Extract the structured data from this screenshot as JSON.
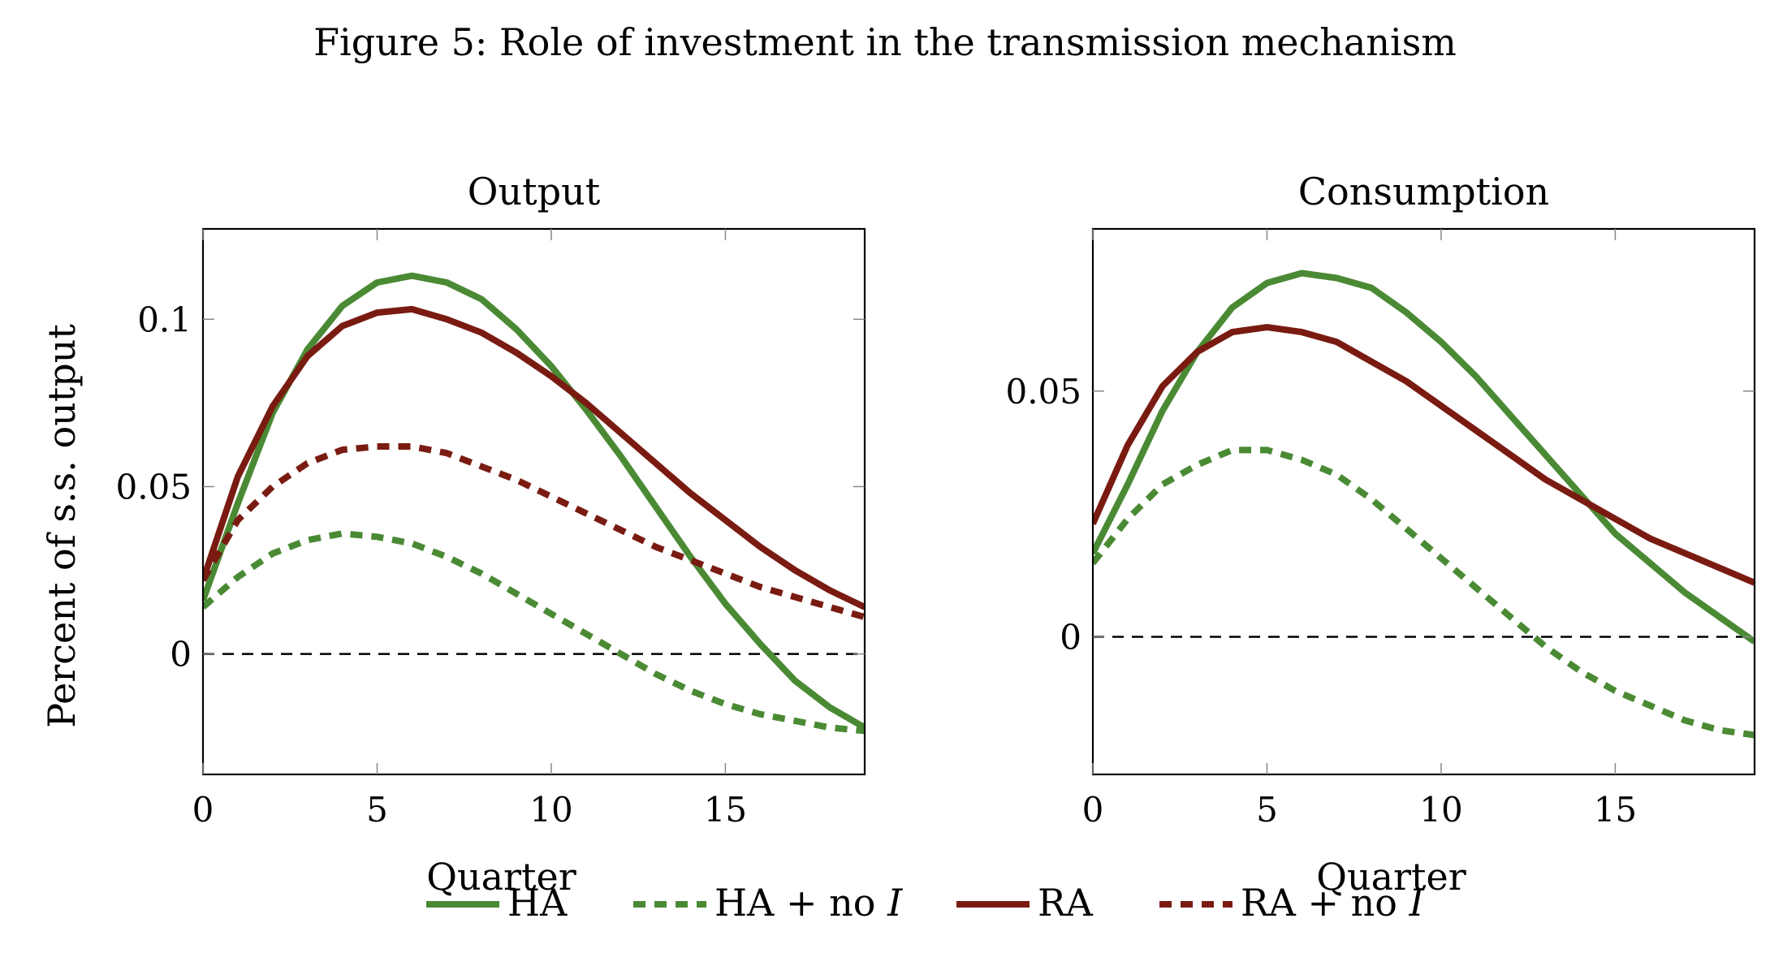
{
  "figure": {
    "title": "Figure 5: Role of investment in the transmission mechanism",
    "ylabel": "Percent of s.s. output"
  },
  "colors": {
    "ha": "#4a8a34",
    "ra": "#7a1b12",
    "zero_line": "#000000"
  },
  "legend": {
    "placement": "bottom-center",
    "items": [
      {
        "key": "ha",
        "label_main": "HA",
        "label_italic": "",
        "style": "solid",
        "color": "#4a8a34"
      },
      {
        "key": "ha_noi",
        "label_main": "HA + no ",
        "label_italic": "I",
        "style": "dashed",
        "color": "#4a8a34"
      },
      {
        "key": "ra",
        "label_main": "RA",
        "label_italic": "",
        "style": "solid",
        "color": "#7a1b12"
      },
      {
        "key": "ra_noi",
        "label_main": "RA + no ",
        "label_italic": "I",
        "style": "dashed",
        "color": "#7a1b12"
      }
    ]
  },
  "chart_data": [
    {
      "type": "line",
      "title": "Output",
      "xlabel": "Quarter",
      "xlim": [
        0,
        19
      ],
      "ylim": [
        -0.036,
        0.127
      ],
      "xticks": [
        0,
        5,
        10,
        15
      ],
      "xtick_labels": [
        "0",
        "5",
        "10",
        "15"
      ],
      "yticks": [
        0,
        0.05,
        0.1
      ],
      "ytick_labels": [
        "0",
        "0.05",
        "0.1"
      ],
      "zero_line": true,
      "x": [
        0,
        1,
        2,
        3,
        4,
        5,
        6,
        7,
        8,
        9,
        10,
        11,
        12,
        13,
        14,
        15,
        16,
        17,
        18,
        19
      ],
      "series": [
        {
          "key": "ha",
          "name": "HA",
          "style": "solid",
          "values": [
            0.016,
            0.045,
            0.072,
            0.091,
            0.104,
            0.111,
            0.113,
            0.111,
            0.106,
            0.097,
            0.086,
            0.073,
            0.059,
            0.044,
            0.029,
            0.015,
            0.003,
            -0.008,
            -0.016,
            -0.022
          ]
        },
        {
          "key": "ha_noi",
          "name": "HA + no I",
          "style": "dashed",
          "values": [
            0.014,
            0.023,
            0.03,
            0.034,
            0.036,
            0.035,
            0.033,
            0.029,
            0.024,
            0.018,
            0.012,
            0.006,
            0.0,
            -0.006,
            -0.011,
            -0.015,
            -0.018,
            -0.02,
            -0.022,
            -0.023
          ]
        },
        {
          "key": "ra",
          "name": "RA",
          "style": "solid",
          "values": [
            0.022,
            0.053,
            0.074,
            0.089,
            0.098,
            0.102,
            0.103,
            0.1,
            0.096,
            0.09,
            0.083,
            0.075,
            0.066,
            0.057,
            0.048,
            0.04,
            0.032,
            0.025,
            0.019,
            0.014
          ]
        },
        {
          "key": "ra_noi",
          "name": "RA + no I",
          "style": "dashed",
          "values": [
            0.022,
            0.04,
            0.05,
            0.057,
            0.061,
            0.062,
            0.062,
            0.06,
            0.056,
            0.052,
            0.047,
            0.042,
            0.037,
            0.032,
            0.028,
            0.024,
            0.02,
            0.017,
            0.014,
            0.011
          ]
        }
      ]
    },
    {
      "type": "line",
      "title": "Consumption",
      "xlabel": "Quarter",
      "xlim": [
        0,
        19
      ],
      "ylim": [
        -0.028,
        0.083
      ],
      "xticks": [
        0,
        5,
        10,
        15
      ],
      "xtick_labels": [
        "0",
        "5",
        "10",
        "15"
      ],
      "yticks": [
        0,
        0.05
      ],
      "ytick_labels": [
        "0",
        "0.05"
      ],
      "zero_line": true,
      "x": [
        0,
        1,
        2,
        3,
        4,
        5,
        6,
        7,
        8,
        9,
        10,
        11,
        12,
        13,
        14,
        15,
        16,
        17,
        18,
        19
      ],
      "series": [
        {
          "key": "ha",
          "name": "HA",
          "style": "solid",
          "values": [
            0.017,
            0.031,
            0.046,
            0.058,
            0.067,
            0.072,
            0.074,
            0.073,
            0.071,
            0.066,
            0.06,
            0.053,
            0.045,
            0.037,
            0.029,
            0.021,
            0.015,
            0.009,
            0.004,
            -0.001
          ]
        },
        {
          "key": "ha_noi",
          "name": "HA + no I",
          "style": "dashed",
          "values": [
            0.015,
            0.024,
            0.031,
            0.035,
            0.038,
            0.038,
            0.036,
            0.033,
            0.028,
            0.022,
            0.016,
            0.01,
            0.004,
            -0.002,
            -0.007,
            -0.011,
            -0.014,
            -0.017,
            -0.019,
            -0.02
          ]
        },
        {
          "key": "ra",
          "name": "RA",
          "style": "solid",
          "values": [
            0.023,
            0.039,
            0.051,
            0.058,
            0.062,
            0.063,
            0.062,
            0.06,
            0.056,
            0.052,
            0.047,
            0.042,
            0.037,
            0.032,
            0.028,
            0.024,
            0.02,
            0.017,
            0.014,
            0.011
          ]
        }
      ]
    }
  ]
}
